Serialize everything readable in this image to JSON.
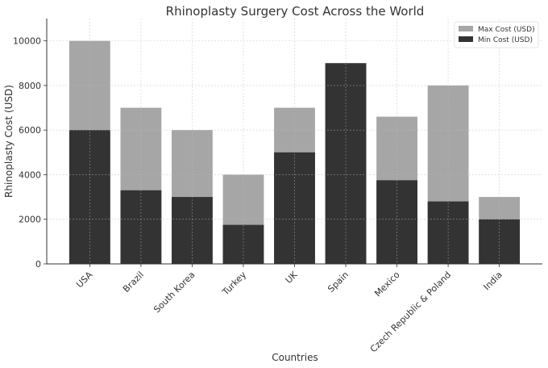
{
  "chart_data": {
    "type": "bar",
    "stacking": "overlay",
    "title": "Rhinoplasty Surgery Cost Across the World",
    "xlabel": "Countries",
    "ylabel": "Rhinoplasty Cost (USD)",
    "categories": [
      "USA",
      "Brazil",
      "South Korea",
      "Turkey",
      "UK",
      "Spain",
      "Mexico",
      "Czech Republic & Poland",
      "India"
    ],
    "series": [
      {
        "name": "Max Cost (USD)",
        "color": "#a6a6a6",
        "values": [
          10000,
          7000,
          6000,
          4000,
          7000,
          9000,
          6600,
          8000,
          3000
        ]
      },
      {
        "name": "Min Cost (USD)",
        "color": "#333333",
        "values": [
          6000,
          3300,
          3000,
          1750,
          5000,
          9000,
          3750,
          2800,
          2000
        ]
      }
    ],
    "ylim": [
      0,
      11000
    ],
    "yticks": [
      0,
      2000,
      4000,
      6000,
      8000,
      10000
    ],
    "grid": true,
    "legend": "top-right"
  }
}
